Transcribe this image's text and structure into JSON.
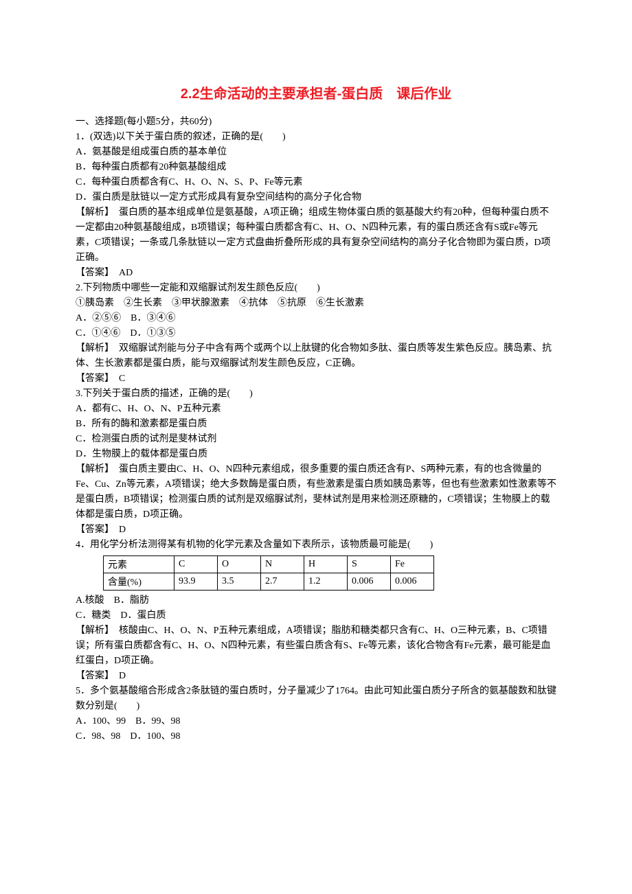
{
  "title": "2.2生命活动的主要承担者-蛋白质　课后作业",
  "section_header": "一、选择题(每小题5分，共60分)",
  "q1": {
    "stem": "1．(双选)以下关于蛋白质的叙述，正确的是(　　)",
    "A": "A．氨基酸是组成蛋白质的基本单位",
    "B": "B．每种蛋白质都有20种氨基酸组成",
    "C": "C．每种蛋白质都含有C、H、O、N、S、P、Fe等元素",
    "D": "D．蛋白质是肽链以一定方式形成具有复杂空间结构的高分子化合物",
    "expl1": "【解析】　蛋白质的基本组成单位是氨基酸，A项正确；组成生物体蛋白质的氨基酸大约有20种，但每种蛋白质不一定都由20种氨基酸组成，B项错误；每种蛋白质都含有C、H、O、N四种元素，有的蛋白质还含有S或Fe等元素，C项错误；一条或几条肽链以一定方式盘曲折叠所形成的具有复杂空间结构的高分子化合物即为蛋白质，D项正确。",
    "ans": "【答案】　AD"
  },
  "q2": {
    "stem": "2.下列物质中哪些一定能和双缩脲试剂发生颜色反应(　　)",
    "items": "①胰岛素　②生长素　③甲状腺激素　④抗体　⑤抗原　⑥生长激素",
    "AB": "A．②⑤⑥　B．③④⑥",
    "CD": "C．①④⑥　D．①③⑤",
    "expl": "【解析】　双缩脲试剂能与分子中含有两个或两个以上肽键的化合物如多肽、蛋白质等发生紫色反应。胰岛素、抗体、生长激素都是蛋白质，能与双缩脲试剂发生颜色反应，C正确。",
    "ans": "【答案】　C"
  },
  "q3": {
    "stem": "3.下列关于蛋白质的描述，正确的是(　　)",
    "A": "A．都有C、H、O、N、P五种元素",
    "B": "B．所有的酶和激素都是蛋白质",
    "C": "C．检测蛋白质的试剂是斐林试剂",
    "D": "D．生物膜上的载体都是蛋白质",
    "expl": "【解析】　蛋白质主要由C、H、O、N四种元素组成，很多重要的蛋白质还含有P、S两种元素，有的也含微量的Fe、Cu、Zn等元素，A项错误；绝大多数酶是蛋白质，有些激素是蛋白质如胰岛素等，但也有些激素如性激素等不是蛋白质，B项错误；检测蛋白质的试剂是双缩脲试剂，斐林试剂是用来检测还原糖的，C项错误；生物膜上的载体都是蛋白质，D项正确。",
    "ans": "【答案】　D"
  },
  "q4": {
    "stem": "4．用化学分析法测得某有机物的化学元素及含量如下表所示，该物质最可能是(　　)",
    "table": {
      "row1": [
        "元素",
        "C",
        "O",
        "N",
        "H",
        "S",
        "Fe"
      ],
      "row2": [
        "含量(%)",
        "93.9",
        "3.5",
        "2.7",
        "1.2",
        "0.006",
        "0.006"
      ]
    },
    "AB": "A.核酸　B．脂肪",
    "CD": "C．糖类　D．蛋白质",
    "expl": "【解析】　核酸由C、H、O、N、P五种元素组成，A项错误；脂肪和糖类都只含有C、H、O三种元素，B、C项错误；所有蛋白质都含有C、H、O、N四种元素，有些蛋白质含有S、Fe等元素，该化合物含有Fe元素，最可能是血红蛋白，D项正确。",
    "ans": "【答案】　D"
  },
  "q5": {
    "stem": "5．多个氨基酸缩合形成含2条肽链的蛋白质时，分子量减少了1764。由此可知此蛋白质分子所含的氨基酸数和肽键数分别是(　　)",
    "AB": "A．100、99　B．99、98",
    "CD": "C．98、98　D．100、98"
  }
}
